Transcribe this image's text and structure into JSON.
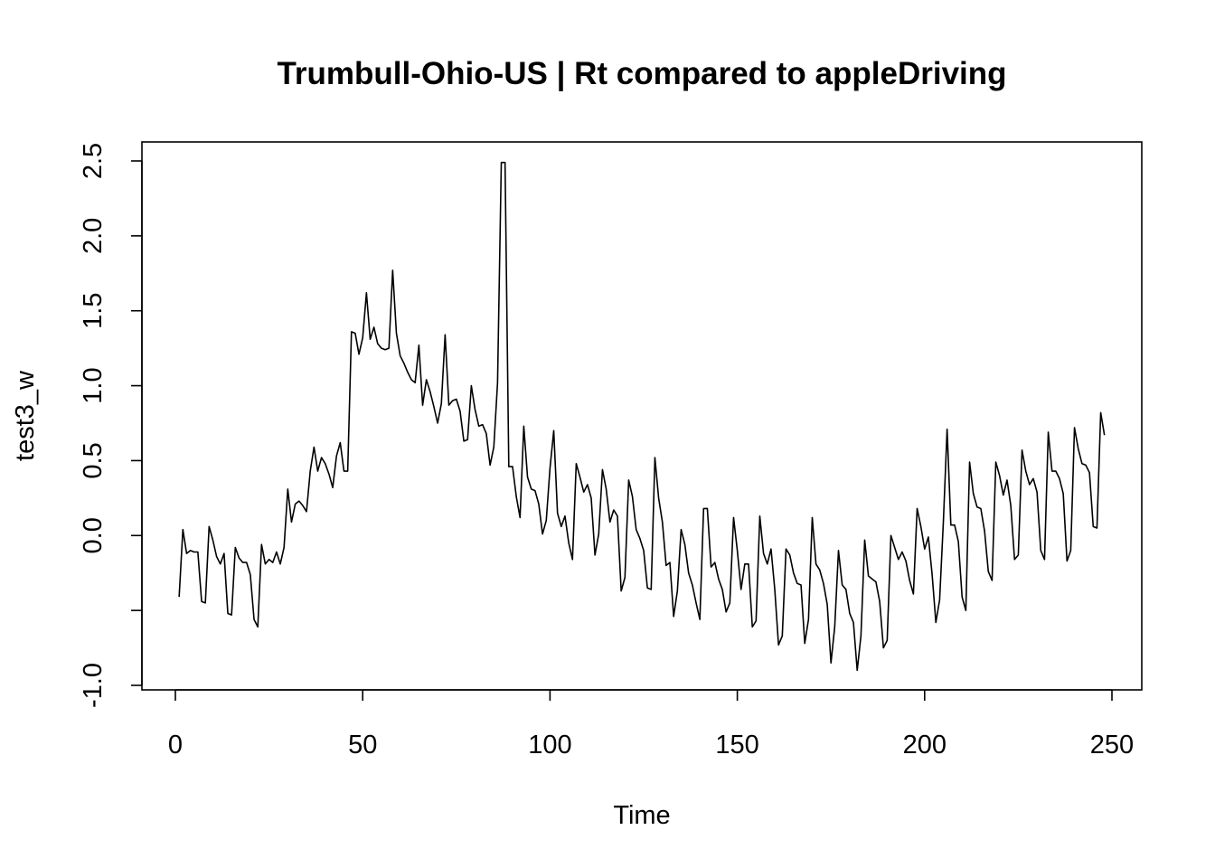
{
  "chart_data": {
    "type": "line",
    "title": "Trumbull-Ohio-US | Rt compared to appleDriving",
    "xlabel": "Time",
    "ylabel": "test3_w",
    "xlim": [
      0,
      250
    ],
    "ylim": [
      -1.0,
      2.5
    ],
    "x_ticks": [
      0,
      50,
      100,
      150,
      200,
      250
    ],
    "x_tick_labels": [
      "0",
      "50",
      "100",
      "150",
      "200",
      "250"
    ],
    "y_ticks": [
      -1.0,
      -0.5,
      0.0,
      0.5,
      1.0,
      1.5,
      2.0,
      2.5
    ],
    "y_tick_labels": [
      "-1.0",
      "",
      "0.0",
      "0.5",
      "1.0",
      "1.5",
      "2.0",
      "2.5"
    ],
    "grid": false,
    "series": [
      {
        "x_start": 1,
        "values": [
          -0.41,
          0.04,
          -0.12,
          -0.1,
          -0.11,
          -0.11,
          -0.44,
          -0.45,
          0.06,
          -0.03,
          -0.14,
          -0.19,
          -0.12,
          -0.52,
          -0.53,
          -0.08,
          -0.15,
          -0.18,
          -0.18,
          -0.26,
          -0.56,
          -0.61,
          -0.06,
          -0.19,
          -0.16,
          -0.18,
          -0.11,
          -0.19,
          -0.08,
          0.31,
          0.09,
          0.21,
          0.23,
          0.2,
          0.16,
          0.43,
          0.59,
          0.43,
          0.52,
          0.48,
          0.41,
          0.32,
          0.53,
          0.62,
          0.43,
          0.43,
          1.36,
          1.35,
          1.21,
          1.32,
          1.62,
          1.31,
          1.39,
          1.28,
          1.25,
          1.24,
          1.25,
          1.77,
          1.35,
          1.2,
          1.15,
          1.09,
          1.04,
          1.02,
          1.27,
          0.87,
          1.04,
          0.96,
          0.86,
          0.75,
          0.88,
          1.34,
          0.87,
          0.9,
          0.91,
          0.83,
          0.63,
          0.64,
          1.0,
          0.84,
          0.73,
          0.74,
          0.68,
          0.47,
          0.59,
          1.02,
          2.49,
          2.49,
          0.46,
          0.46,
          0.26,
          0.12,
          0.73,
          0.39,
          0.31,
          0.3,
          0.21,
          0.01,
          0.1,
          0.45,
          0.7,
          0.15,
          0.06,
          0.13,
          -0.05,
          -0.16,
          0.48,
          0.39,
          0.29,
          0.34,
          0.25,
          -0.13,
          0.01,
          0.44,
          0.31,
          0.09,
          0.17,
          0.13,
          -0.37,
          -0.28,
          0.37,
          0.26,
          0.04,
          -0.02,
          -0.1,
          -0.35,
          -0.36,
          0.52,
          0.25,
          0.09,
          -0.2,
          -0.18,
          -0.54,
          -0.37,
          0.04,
          -0.06,
          -0.25,
          -0.33,
          -0.45,
          -0.56,
          0.18,
          0.18,
          -0.21,
          -0.18,
          -0.29,
          -0.36,
          -0.51,
          -0.45,
          0.12,
          -0.1,
          -0.36,
          -0.19,
          -0.19,
          -0.61,
          -0.57,
          0.13,
          -0.12,
          -0.19,
          -0.09,
          -0.36,
          -0.73,
          -0.67,
          -0.09,
          -0.13,
          -0.25,
          -0.32,
          -0.33,
          -0.72,
          -0.56,
          0.12,
          -0.19,
          -0.23,
          -0.32,
          -0.46,
          -0.85,
          -0.61,
          -0.1,
          -0.33,
          -0.36,
          -0.52,
          -0.58,
          -0.9,
          -0.67,
          -0.03,
          -0.27,
          -0.29,
          -0.31,
          -0.44,
          -0.75,
          -0.7,
          0.0,
          -0.08,
          -0.16,
          -0.11,
          -0.17,
          -0.3,
          -0.39,
          0.18,
          0.06,
          -0.09,
          -0.01,
          -0.26,
          -0.58,
          -0.43,
          0.09,
          0.71,
          0.07,
          0.07,
          -0.04,
          -0.41,
          -0.5,
          0.49,
          0.28,
          0.19,
          0.18,
          0.03,
          -0.24,
          -0.3,
          0.49,
          0.4,
          0.27,
          0.37,
          0.2,
          -0.16,
          -0.13,
          0.57,
          0.43,
          0.34,
          0.38,
          0.29,
          -0.1,
          -0.16,
          0.69,
          0.43,
          0.43,
          0.38,
          0.28,
          -0.17,
          -0.1,
          0.72,
          0.58,
          0.48,
          0.47,
          0.42,
          0.06,
          0.05,
          0.82,
          0.67
        ]
      }
    ]
  }
}
